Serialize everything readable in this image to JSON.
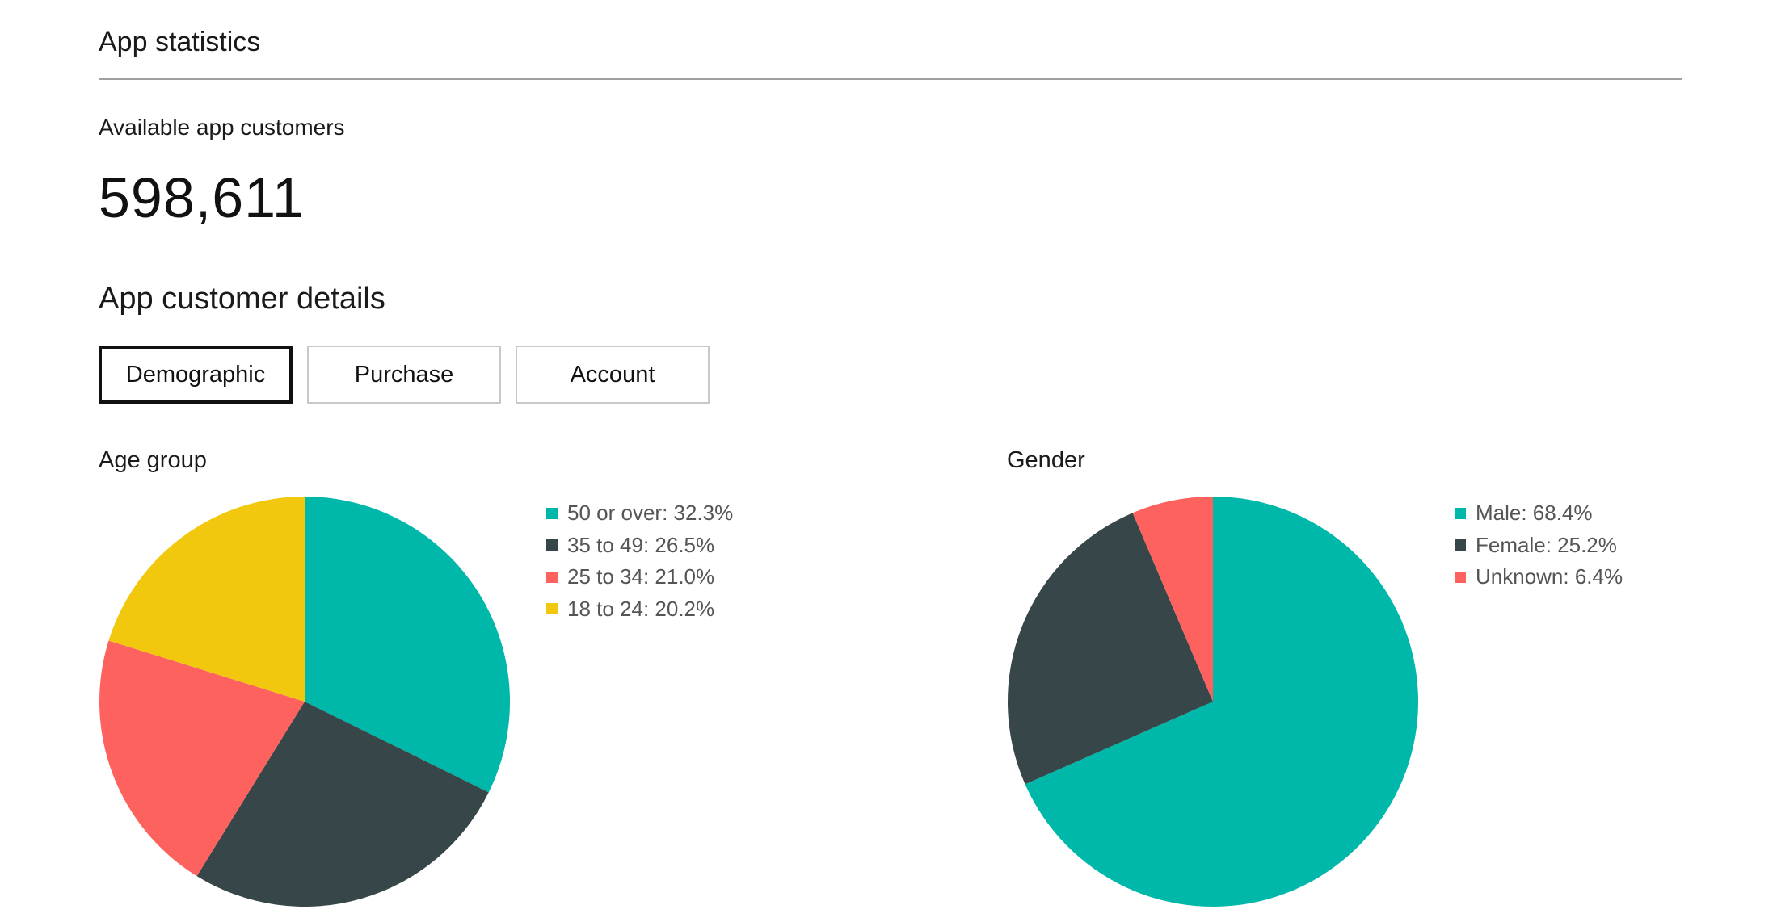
{
  "header": {
    "title": "App statistics"
  },
  "summary": {
    "label": "Available app customers",
    "count": "598,611"
  },
  "details": {
    "heading": "App customer details",
    "tabs": [
      {
        "label": "Demographic",
        "active": true
      },
      {
        "label": "Purchase",
        "active": false
      },
      {
        "label": "Account",
        "active": false
      }
    ]
  },
  "colors": {
    "teal": "#00b8aa",
    "charcoal": "#374649",
    "coral": "#fd625e",
    "yellow": "#f2c80f"
  },
  "chart_data": [
    {
      "type": "pie",
      "title": "Age group",
      "legend_position": "right",
      "slices": [
        {
          "label": "50 or over: 32.3%",
          "value": 32.3,
          "color": "#00b8aa"
        },
        {
          "label": "35 to 49: 26.5%",
          "value": 26.5,
          "color": "#374649"
        },
        {
          "label": "25 to 34: 21.0%",
          "value": 21.0,
          "color": "#fd625e"
        },
        {
          "label": "18 to 24: 20.2%",
          "value": 20.2,
          "color": "#f2c80f"
        }
      ]
    },
    {
      "type": "pie",
      "title": "Gender",
      "legend_position": "right",
      "slices": [
        {
          "label": "Male: 68.4%",
          "value": 68.4,
          "color": "#00b8aa"
        },
        {
          "label": "Female: 25.2%",
          "value": 25.2,
          "color": "#374649"
        },
        {
          "label": "Unknown: 6.4%",
          "value": 6.4,
          "color": "#fd625e"
        }
      ]
    }
  ]
}
